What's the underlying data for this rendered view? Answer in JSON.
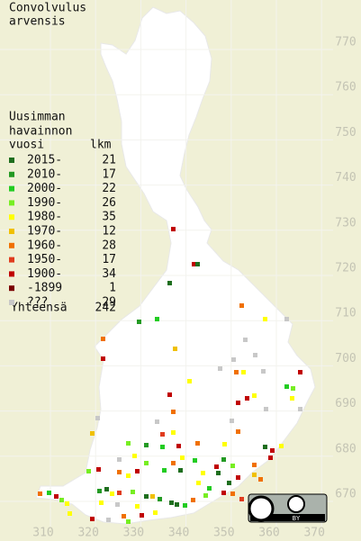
{
  "title": [
    "Convolvulus",
    "arvensis"
  ],
  "legend": {
    "title": [
      "Uusimman",
      "havainnon",
      "vuosi"
    ],
    "count_header": "lkm",
    "entries": [
      {
        "label": "2015-",
        "count": 21,
        "color": "#1e6e1e"
      },
      {
        "label": "2010-",
        "count": 17,
        "color": "#239a23"
      },
      {
        "label": "2000-",
        "count": 22,
        "color": "#22cc22"
      },
      {
        "label": "1990-",
        "count": 26,
        "color": "#77ee22"
      },
      {
        "label": "1980-",
        "count": 35,
        "color": "#ffff00"
      },
      {
        "label": "1970-",
        "count": 12,
        "color": "#f0c000"
      },
      {
        "label": "1960-",
        "count": 28,
        "color": "#f07000"
      },
      {
        "label": "1950-",
        "count": 17,
        "color": "#e03c1e"
      },
      {
        "label": "1900-",
        "count": 34,
        "color": "#c00000"
      },
      {
        "label": "-1899",
        "count": 1,
        "color": "#7a0000"
      },
      {
        "label": "???",
        "count": 29,
        "color": "#c8c8c8"
      }
    ],
    "total_label": "Yhteensä",
    "total": 242
  },
  "x_ticks": [
    310,
    320,
    330,
    340,
    350,
    360,
    370
  ],
  "y_ticks": [
    670,
    680,
    690,
    700,
    710,
    720,
    730,
    740,
    750,
    760,
    770
  ],
  "license": "BY"
}
